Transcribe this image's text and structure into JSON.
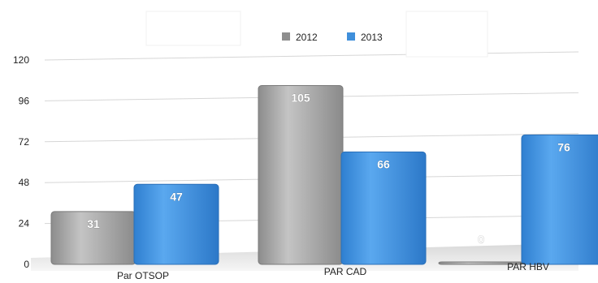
{
  "chart_data": {
    "type": "bar",
    "categories": [
      "Par OTSOP",
      "PAR CAD",
      "PAR HBV"
    ],
    "series": [
      {
        "name": "2012",
        "values": [
          31,
          105,
          0
        ],
        "color": "#9a9a9a"
      },
      {
        "name": "2013",
        "values": [
          47,
          66,
          76
        ],
        "color": "#3f8fdb"
      }
    ],
    "yticks": [
      0,
      24,
      48,
      72,
      96,
      120
    ],
    "ylim": [
      0,
      120
    ],
    "grid": true,
    "legend_position": "top-center"
  }
}
